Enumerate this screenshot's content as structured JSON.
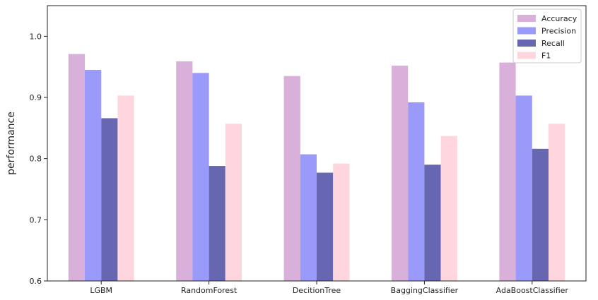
{
  "chart_data": {
    "type": "bar",
    "title": "",
    "xlabel": "",
    "ylabel": "performance",
    "ylim": [
      0.6,
      1.05
    ],
    "yticks": [
      "0.6",
      "0.7",
      "0.8",
      "0.9",
      "1.0"
    ],
    "categories": [
      "LGBM",
      "RandomForest",
      "DecitionTree",
      "BaggingClassifier",
      "AdaBoostClassifier"
    ],
    "series": [
      {
        "name": "Accuracy",
        "color": "#d8b0da",
        "values": [
          0.971,
          0.959,
          0.935,
          0.952,
          0.957
        ]
      },
      {
        "name": "Precision",
        "color": "#9a9afa",
        "values": [
          0.945,
          0.94,
          0.807,
          0.892,
          0.903
        ]
      },
      {
        "name": "Recall",
        "color": "#6767b1",
        "values": [
          0.866,
          0.788,
          0.777,
          0.79,
          0.816
        ]
      },
      {
        "name": "F1",
        "color": "#ffd6de",
        "values": [
          0.903,
          0.857,
          0.792,
          0.837,
          0.857
        ]
      }
    ],
    "grid": false,
    "legend": "top-right"
  }
}
